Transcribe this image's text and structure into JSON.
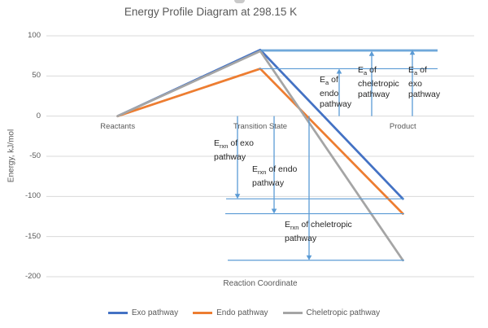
{
  "title": "Energy Profile Diagram at 298.15 K",
  "yticks": [
    "100",
    "50",
    "0",
    "-50",
    "-100",
    "-150",
    "-200"
  ],
  "grid_color": "#D9D9D9",
  "annotation_color": "#5B9BD5",
  "chart_data": {
    "type": "line",
    "title": "Energy Profile Diagram at 298.15 K",
    "xlabel": "Reaction Coordinate",
    "ylabel": "Energy, kJ/mol",
    "categories": [
      "Reactants",
      "Transition State",
      "Product"
    ],
    "ylim": [
      -200,
      100
    ],
    "ytick_interval": 50,
    "grid": true,
    "legend_position": "bottom",
    "series": [
      {
        "name": "Exo pathway",
        "color": "#4472C4",
        "values": [
          0,
          82.5,
          -103
        ]
      },
      {
        "name": "Endo pathway",
        "color": "#ED7D31",
        "values": [
          0,
          59,
          -121.5
        ]
      },
      {
        "name": "Cheletropic pathway",
        "color": "#A5A5A5",
        "values": [
          0,
          81,
          -179.5
        ]
      }
    ],
    "annotations": [
      "Ea of exo pathway = 82.5 kJ/mol",
      "Ea of endo pathway = 59 kJ/mol",
      "Ea of cheletropic pathway = 81 kJ/mol",
      "Erxn of exo pathway = -103 kJ/mol",
      "Erxn of endo pathway = -121.5 kJ/mol",
      "Erxn of cheletropic pathway = -179.5 kJ/mol"
    ]
  },
  "annotation_labels": {
    "ea_endo": {
      "prefix": "E",
      "sub": "a",
      "suffix": " of",
      "line2": "endo",
      "line3": "pathway"
    },
    "ea_chel": {
      "prefix": "E",
      "sub": "a",
      "suffix": " of",
      "line2": "cheletropic",
      "line3": "pathway"
    },
    "ea_exo": {
      "prefix": "E",
      "sub": "a",
      "suffix": " of",
      "line2": "exo",
      "line3": "pathway"
    },
    "rxn_exo": {
      "prefix": "E",
      "sub": "rxn",
      "suffix": " of exo",
      "line2": "pathway"
    },
    "rxn_endo": {
      "prefix": "E",
      "sub": "rxn",
      "suffix": " of endo",
      "line2": "pathway"
    },
    "rxn_chel": {
      "prefix": "E",
      "sub": "rxn",
      "suffix": " of cheletropic",
      "line2": "pathway"
    }
  }
}
